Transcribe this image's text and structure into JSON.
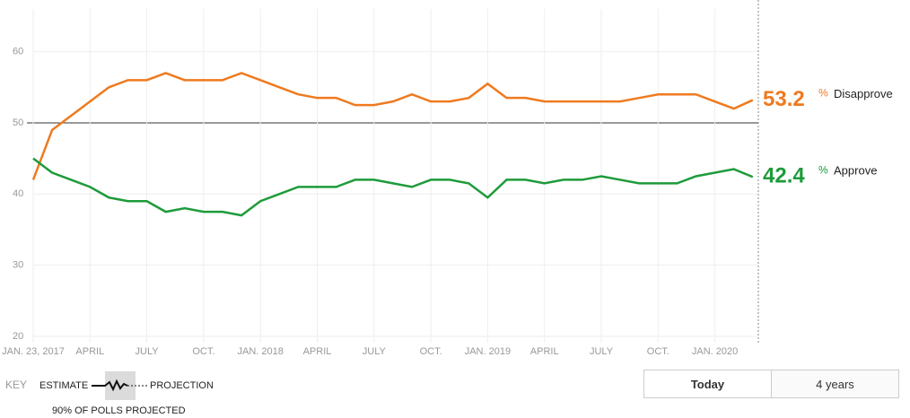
{
  "chart_data": {
    "type": "line",
    "categories": [
      "JAN. 23, 2017",
      null,
      null,
      "APRIL",
      null,
      null,
      "JULY",
      null,
      null,
      "OCT.",
      null,
      null,
      "JAN. 2018",
      null,
      null,
      "APRIL",
      null,
      null,
      "JULY",
      null,
      null,
      "OCT.",
      null,
      null,
      "JAN. 2019",
      null,
      null,
      "APRIL",
      null,
      null,
      "JULY",
      null,
      null,
      "OCT.",
      null,
      null,
      "JAN. 2020",
      null,
      null
    ],
    "series": [
      {
        "name": "Disapprove",
        "color": "#ef7a1f",
        "values": [
          42,
          49,
          51,
          53,
          55,
          56,
          56,
          57,
          56,
          56,
          56,
          57,
          56,
          55,
          54,
          53.5,
          53.5,
          52.5,
          52.5,
          53,
          54,
          53,
          53,
          53.5,
          55.5,
          53.5,
          53.5,
          53,
          53,
          53,
          53,
          53,
          53.5,
          54,
          54,
          54,
          53,
          52,
          53.2
        ]
      },
      {
        "name": "Approve",
        "color": "#1e9b3a",
        "values": [
          45,
          43,
          42,
          41,
          39.5,
          39,
          39,
          37.5,
          38,
          37.5,
          37.5,
          37,
          39,
          40,
          41,
          41,
          41,
          42,
          42,
          41.5,
          41,
          42,
          42,
          41.5,
          39.5,
          42,
          42,
          41.5,
          42,
          42,
          42.5,
          42,
          41.5,
          41.5,
          41.5,
          42.5,
          43,
          43.5,
          42.4
        ]
      }
    ],
    "unit": "%",
    "ylim": [
      20,
      66
    ],
    "yticks": [
      20,
      30,
      40,
      50,
      60
    ],
    "baseline": 50,
    "grid": true,
    "key": {
      "title": "KEY",
      "estimate": "ESTIMATE",
      "projection": "PROJECTION",
      "band": "90% OF POLLS PROJECTED"
    },
    "buttons": [
      {
        "label": "Today",
        "selected": true
      },
      {
        "label": "4 years",
        "selected": false
      }
    ]
  }
}
